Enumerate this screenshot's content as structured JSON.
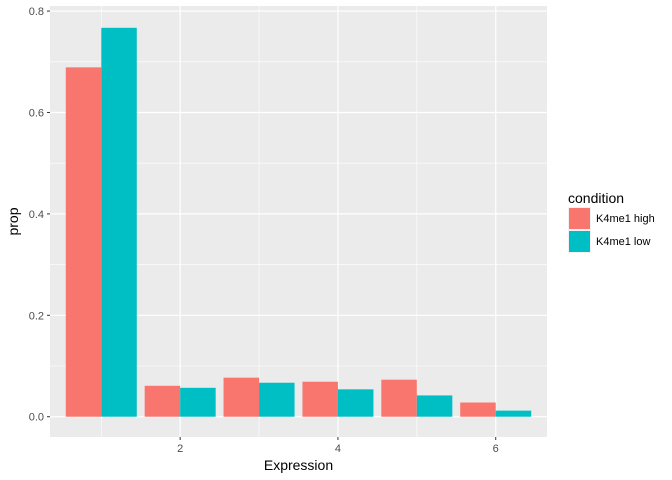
{
  "chart_data": {
    "type": "bar",
    "xlabel": "Expression",
    "ylabel": "prop",
    "x": [
      1,
      2,
      3,
      4,
      5,
      6
    ],
    "x_ticks": [
      2,
      4,
      6
    ],
    "x_tick_labels": [
      "2",
      "4",
      "6"
    ],
    "xlim": [
      0.35,
      6.65
    ],
    "ylim": [
      -0.04,
      0.81
    ],
    "y_ticks": [
      0.0,
      0.2,
      0.4,
      0.6,
      0.8
    ],
    "y_tick_labels": [
      "0.0",
      "0.2",
      "0.4",
      "0.6",
      "0.8"
    ],
    "grid": true,
    "legend_position": "right",
    "legend_title": "condition",
    "series": [
      {
        "name": "K4me1 high",
        "color": "#F8766D",
        "values": [
          0.689,
          0.061,
          0.077,
          0.069,
          0.073,
          0.028
        ]
      },
      {
        "name": "K4me1 low",
        "color": "#00BFC4",
        "values": [
          0.767,
          0.057,
          0.067,
          0.054,
          0.042,
          0.012
        ]
      }
    ]
  }
}
